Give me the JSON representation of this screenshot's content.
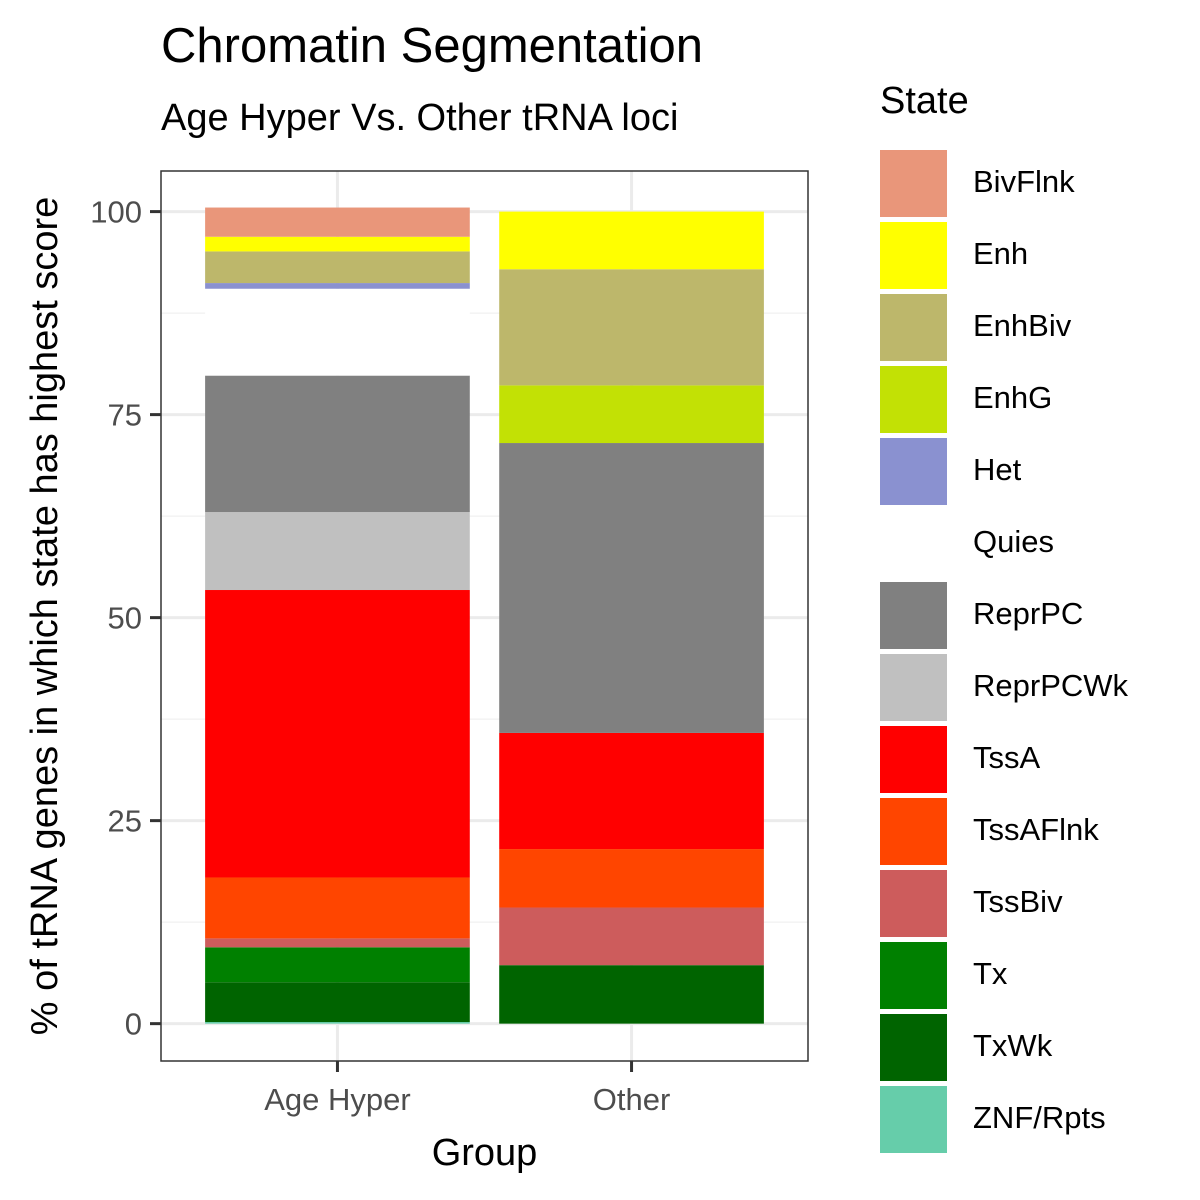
{
  "chart_data": {
    "type": "bar",
    "stacked": true,
    "title": "Chromatin Segmentation",
    "subtitle": "Age Hyper Vs. Other tRNA loci",
    "xlabel": "Group",
    "ylabel": "% of tRNA genes in which state has highest score",
    "ylim": [
      -4.6,
      105
    ],
    "yticks": [
      0,
      25,
      50,
      75,
      100
    ],
    "grid": true,
    "legend_title": "State",
    "legend_position": "right",
    "categories": [
      "Age Hyper",
      "Other"
    ],
    "series": [
      {
        "name": "BivFlnk",
        "color": "#E9967A",
        "values": [
          3.6,
          0
        ]
      },
      {
        "name": "Enh",
        "color": "#FFFF00",
        "values": [
          1.8,
          7.1
        ]
      },
      {
        "name": "EnhBiv",
        "color": "#BDB76B",
        "values": [
          3.9,
          14.3
        ]
      },
      {
        "name": "EnhG",
        "color": "#C2E105",
        "values": [
          0,
          7.1
        ]
      },
      {
        "name": "Het",
        "color": "#8A91D0",
        "values": [
          0.7,
          0
        ]
      },
      {
        "name": "Quies",
        "color": "#FFFFFF",
        "values": [
          10.7,
          0
        ]
      },
      {
        "name": "ReprPC",
        "color": "#808080",
        "values": [
          16.8,
          35.7
        ]
      },
      {
        "name": "ReprPCWk",
        "color": "#C0C0C0",
        "values": [
          9.6,
          0
        ]
      },
      {
        "name": "TssA",
        "color": "#FF0000",
        "values": [
          35.4,
          14.3
        ]
      },
      {
        "name": "TssAFlnk",
        "color": "#FF4500",
        "values": [
          7.5,
          7.2
        ]
      },
      {
        "name": "TssBiv",
        "color": "#CD5C5C",
        "values": [
          1.1,
          7.1
        ]
      },
      {
        "name": "Tx",
        "color": "#008000",
        "values": [
          4.3,
          0
        ]
      },
      {
        "name": "TxWk",
        "color": "#006400",
        "values": [
          4.9,
          7.2
        ]
      },
      {
        "name": "ZNF/Rpts",
        "color": "#66CDAA",
        "values": [
          0.2,
          0
        ]
      }
    ]
  }
}
